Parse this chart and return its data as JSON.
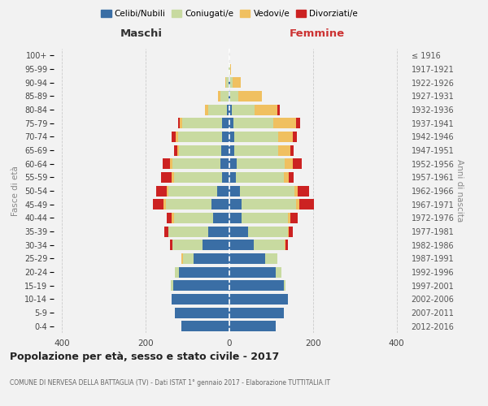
{
  "age_groups": [
    "0-4",
    "5-9",
    "10-14",
    "15-19",
    "20-24",
    "25-29",
    "30-34",
    "35-39",
    "40-44",
    "45-49",
    "50-54",
    "55-59",
    "60-64",
    "65-69",
    "70-74",
    "75-79",
    "80-84",
    "85-89",
    "90-94",
    "95-99",
    "100+"
  ],
  "birth_years": [
    "2012-2016",
    "2007-2011",
    "2002-2006",
    "1997-2001",
    "1992-1996",
    "1987-1991",
    "1982-1986",
    "1977-1981",
    "1972-1976",
    "1967-1971",
    "1962-1966",
    "1957-1961",
    "1952-1956",
    "1947-1951",
    "1942-1946",
    "1937-1941",
    "1932-1936",
    "1927-1931",
    "1922-1926",
    "1917-1921",
    "≤ 1916"
  ],
  "maschi": {
    "celibi": [
      115,
      130,
      138,
      135,
      120,
      85,
      65,
      50,
      38,
      42,
      30,
      18,
      22,
      20,
      18,
      18,
      5,
      2,
      2,
      0,
      0
    ],
    "coniugati": [
      0,
      0,
      0,
      5,
      10,
      25,
      72,
      95,
      95,
      110,
      115,
      115,
      115,
      100,
      105,
      95,
      45,
      20,
      5,
      1,
      0
    ],
    "vedovi": [
      0,
      0,
      0,
      0,
      0,
      5,
      0,
      0,
      5,
      5,
      5,
      5,
      5,
      5,
      5,
      5,
      8,
      5,
      2,
      0,
      0
    ],
    "divorziati": [
      0,
      0,
      0,
      0,
      0,
      0,
      5,
      10,
      12,
      25,
      25,
      25,
      18,
      8,
      10,
      5,
      0,
      0,
      0,
      0,
      0
    ]
  },
  "femmine": {
    "nubili": [
      110,
      130,
      140,
      130,
      110,
      85,
      58,
      45,
      30,
      30,
      25,
      15,
      18,
      12,
      12,
      10,
      5,
      2,
      2,
      0,
      0
    ],
    "coniugate": [
      0,
      0,
      0,
      5,
      15,
      30,
      75,
      95,
      110,
      130,
      130,
      115,
      115,
      105,
      105,
      95,
      55,
      20,
      5,
      2,
      0
    ],
    "vedove": [
      0,
      0,
      0,
      0,
      0,
      0,
      2,
      2,
      5,
      8,
      8,
      12,
      18,
      28,
      35,
      55,
      55,
      55,
      20,
      2,
      0
    ],
    "divorziate": [
      0,
      0,
      0,
      0,
      0,
      0,
      5,
      10,
      18,
      35,
      28,
      12,
      22,
      8,
      10,
      10,
      5,
      0,
      0,
      0,
      0
    ]
  },
  "colors": {
    "celibi_nubili": "#3a6ea5",
    "coniugati_e": "#c8daa0",
    "vedovi_e": "#f0c060",
    "divorziati_e": "#cc2222"
  },
  "xlim": 420,
  "title": "Popolazione per età, sesso e stato civile - 2017",
  "subtitle": "COMUNE DI NERVESA DELLA BATTAGLIA (TV) - Dati ISTAT 1° gennaio 2017 - Elaborazione TUTTITALIA.IT",
  "ylabel_left": "Fasce di età",
  "ylabel_right": "Anni di nascita",
  "xlabel_maschi": "Maschi",
  "xlabel_femmine": "Femmine",
  "legend_labels": [
    "Celibi/Nubili",
    "Coniugati/e",
    "Vedovi/e",
    "Divorziati/e"
  ],
  "background_color": "#f2f2f2"
}
